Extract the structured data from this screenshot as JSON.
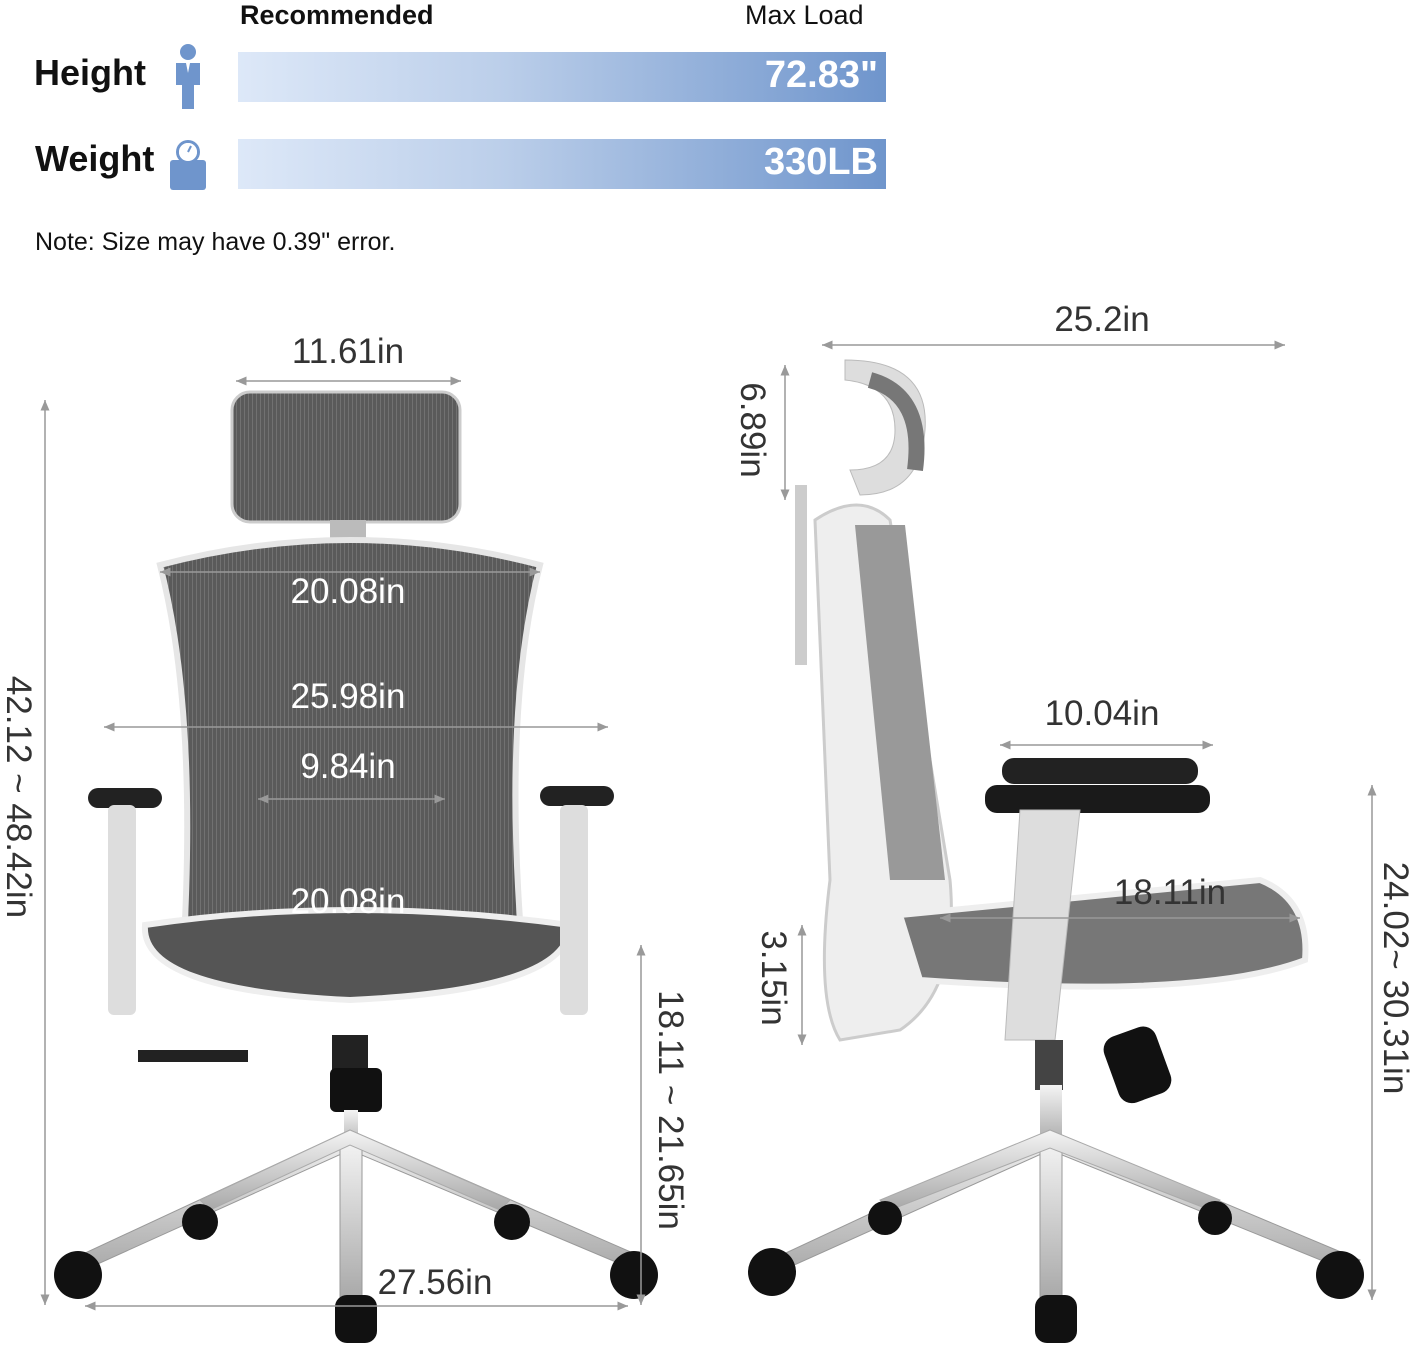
{
  "capacity": {
    "recommended_label": "Recommended",
    "max_load_label": "Max Load",
    "rows": [
      {
        "label": "Height",
        "icon": "person-icon",
        "value": "72.83\""
      },
      {
        "label": "Weight",
        "icon": "scale-icon",
        "value": "330LB"
      }
    ],
    "bar_color": "#6f95cc",
    "note": "Note: Size may have 0.39\" error."
  },
  "front_view": {
    "headrest_width": "11.61in",
    "backrest_top_width": "20.08in",
    "armrest_span": "25.98in",
    "lumbar_width": "9.84in",
    "seat_width": "20.08in",
    "overall_height": "42.12 ~ 48.42in",
    "seat_height": "18.11 ~ 21.65in",
    "base_width": "27.56in"
  },
  "side_view": {
    "overall_depth": "25.2in",
    "headrest_adjust": "6.89in",
    "armrest_depth": "10.04in",
    "seat_depth": "18.11in",
    "seat_to_armrest": "3.15in",
    "armrest_height": "24.02~ 30.31in"
  }
}
